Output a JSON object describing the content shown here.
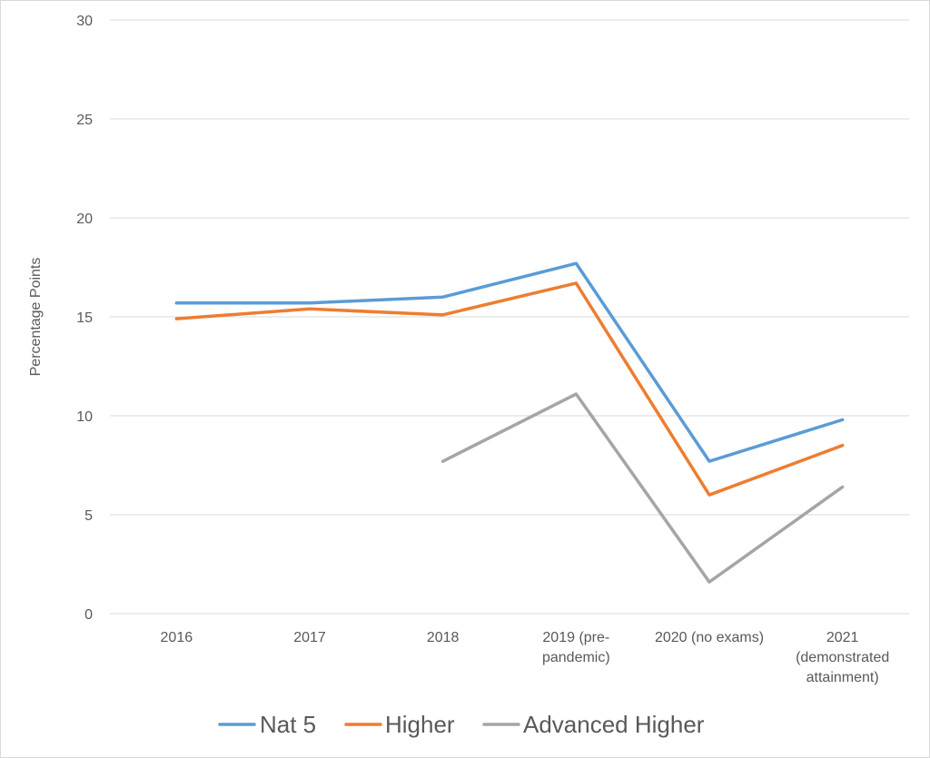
{
  "chart_data": {
    "type": "line",
    "title": "",
    "xlabel": "",
    "ylabel": "Percentage Points",
    "ylim": [
      0,
      30
    ],
    "yticks": [
      "0",
      "5",
      "10",
      "15",
      "20",
      "25",
      "30"
    ],
    "categories": [
      "2016",
      "2017",
      "2018",
      "2019 (pre-pandemic)",
      "2020 (no exams)",
      "2021 (demonstrated attainment)"
    ],
    "category_lines": [
      [
        "2016"
      ],
      [
        "2017"
      ],
      [
        "2018"
      ],
      [
        "2019 (pre-",
        "pandemic)"
      ],
      [
        "2020 (no exams)"
      ],
      [
        "2021",
        "(demonstrated",
        "attainment)"
      ]
    ],
    "grid": true,
    "legend_position": "bottom",
    "series": [
      {
        "name": "Nat 5",
        "color": "#5b9bd5",
        "values": [
          15.7,
          15.7,
          16.0,
          17.7,
          7.7,
          9.8
        ]
      },
      {
        "name": "Higher",
        "color": "#ed7d31",
        "values": [
          14.9,
          15.4,
          15.1,
          16.7,
          6.0,
          8.5
        ]
      },
      {
        "name": "Advanced Higher",
        "color": "#a5a5a5",
        "values": [
          null,
          null,
          7.7,
          11.1,
          1.6,
          6.4
        ]
      }
    ]
  }
}
